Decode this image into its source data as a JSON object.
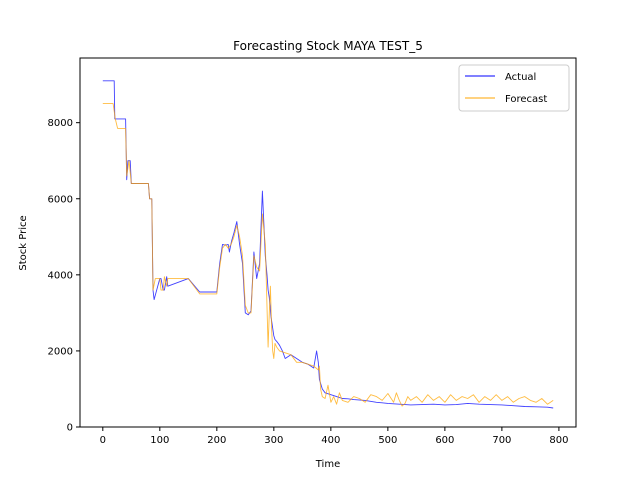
{
  "chart_data": {
    "type": "line",
    "title": "Forecasting Stock MAYA TEST_5",
    "xlabel": "Time",
    "ylabel": "Stock Price",
    "xlim": [
      -40,
      830
    ],
    "ylim": [
      0,
      9700
    ],
    "xticks": [
      0,
      100,
      200,
      300,
      400,
      500,
      600,
      700,
      800
    ],
    "yticks": [
      0,
      2000,
      4000,
      6000,
      8000
    ],
    "grid": false,
    "legend_position": "upper right",
    "series": [
      {
        "name": "Actual",
        "color": "#0000ff",
        "x": [
          0,
          20,
          21,
          26,
          40,
          42,
          44,
          48,
          50,
          52,
          80,
          82,
          86,
          88,
          90,
          100,
          102,
          106,
          108,
          112,
          114,
          150,
          170,
          200,
          205,
          210,
          215,
          220,
          222,
          224,
          226,
          230,
          235,
          240,
          245,
          250,
          255,
          260,
          265,
          270,
          275,
          280,
          285,
          288,
          290,
          292,
          295,
          300,
          302,
          305,
          310,
          315,
          320,
          330,
          340,
          350,
          360,
          370,
          375,
          378,
          380,
          385,
          390,
          400,
          410,
          420,
          430,
          440,
          460,
          480,
          500,
          520,
          540,
          560,
          580,
          600,
          620,
          640,
          660,
          680,
          700,
          720,
          740,
          760,
          780,
          790
        ],
        "y": [
          9100,
          9100,
          8100,
          8100,
          8100,
          6500,
          7000,
          7000,
          6400,
          6400,
          6400,
          6000,
          6000,
          3600,
          3350,
          3900,
          3900,
          3600,
          3600,
          3950,
          3700,
          3900,
          3550,
          3550,
          4300,
          4800,
          4780,
          4800,
          4600,
          4750,
          4900,
          5100,
          5400,
          4800,
          4300,
          3000,
          2950,
          3050,
          4600,
          3900,
          4300,
          6200,
          4500,
          4000,
          3600,
          3400,
          2900,
          2400,
          2300,
          2250,
          2150,
          2000,
          1800,
          1900,
          1800,
          1700,
          1650,
          1550,
          2000,
          1700,
          1250,
          1000,
          900,
          850,
          800,
          750,
          740,
          720,
          700,
          650,
          620,
          600,
          580,
          590,
          600,
          580,
          590,
          620,
          600,
          590,
          580,
          560,
          540,
          530,
          520,
          500
        ]
      },
      {
        "name": "Forecast",
        "color": "#ffa500",
        "x": [
          0,
          15,
          18,
          22,
          26,
          28,
          40,
          42,
          44,
          46,
          48,
          50,
          52,
          80,
          82,
          86,
          88,
          92,
          100,
          102,
          106,
          108,
          112,
          114,
          150,
          170,
          200,
          205,
          210,
          215,
          220,
          225,
          230,
          235,
          240,
          245,
          250,
          255,
          260,
          265,
          270,
          275,
          280,
          285,
          290,
          292,
          294,
          296,
          298,
          300,
          302,
          305,
          310,
          320,
          330,
          340,
          350,
          360,
          370,
          378,
          380,
          382,
          385,
          390,
          395,
          400,
          405,
          410,
          415,
          420,
          430,
          440,
          450,
          460,
          470,
          480,
          490,
          500,
          510,
          515,
          520,
          525,
          530,
          535,
          540,
          550,
          560,
          570,
          580,
          590,
          600,
          610,
          620,
          630,
          640,
          650,
          660,
          670,
          680,
          690,
          700,
          710,
          720,
          730,
          740,
          750,
          760,
          770,
          780,
          790
        ],
        "y": [
          8500,
          8500,
          8500,
          8100,
          7850,
          7850,
          7850,
          6600,
          6800,
          7000,
          6700,
          6400,
          6400,
          6400,
          6000,
          6000,
          3600,
          3900,
          3900,
          3600,
          3600,
          3950,
          3700,
          3900,
          3900,
          3500,
          3500,
          4200,
          4700,
          4800,
          4700,
          4800,
          5000,
          5300,
          5000,
          4500,
          3200,
          3000,
          3000,
          4500,
          4200,
          4100,
          5600,
          4800,
          2100,
          3000,
          3700,
          2600,
          2000,
          1800,
          2200,
          2100,
          2000,
          1950,
          1900,
          1700,
          1700,
          1650,
          1600,
          1500,
          1600,
          1000,
          800,
          750,
          1100,
          650,
          800,
          600,
          900,
          700,
          650,
          800,
          750,
          650,
          850,
          800,
          700,
          880,
          650,
          900,
          700,
          550,
          620,
          800,
          700,
          800,
          650,
          850,
          700,
          800,
          650,
          850,
          700,
          800,
          750,
          850,
          650,
          800,
          700,
          850,
          700,
          800,
          650,
          750,
          800,
          700,
          650,
          750,
          600,
          700
        ]
      }
    ]
  }
}
